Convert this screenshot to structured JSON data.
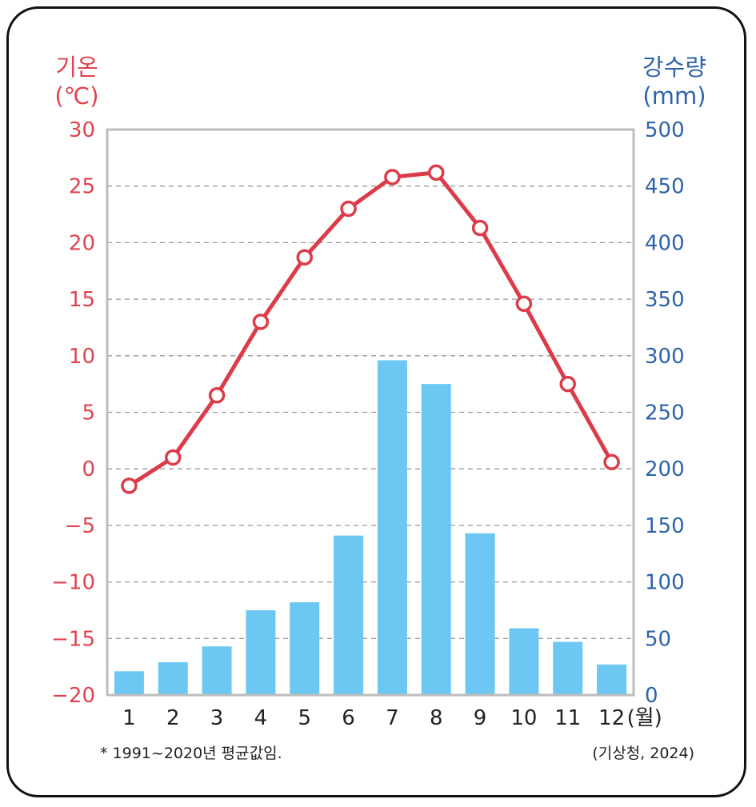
{
  "chart_data": {
    "type": "bar+line",
    "categories": [
      "1",
      "2",
      "3",
      "4",
      "5",
      "6",
      "7",
      "8",
      "9",
      "10",
      "11",
      "12"
    ],
    "x_unit": "(월)",
    "left_axis": {
      "title_lines": [
        "기온",
        "(℃)"
      ],
      "ticks": [
        "30",
        "25",
        "20",
        "15",
        "10",
        "5",
        "0",
        "−5",
        "−10",
        "−15",
        "−20"
      ],
      "ylim": [
        -20,
        30
      ],
      "color": "#e0434f"
    },
    "right_axis": {
      "title_lines": [
        "강수량",
        "(mm)"
      ],
      "ticks": [
        "500",
        "450",
        "400",
        "350",
        "300",
        "250",
        "200",
        "150",
        "100",
        "50",
        "0"
      ],
      "ylim": [
        0,
        500
      ],
      "color": "#2e63a8"
    },
    "series": [
      {
        "kind": "line",
        "axis": "left",
        "values": [
          -1.5,
          1.0,
          6.5,
          13.0,
          18.7,
          23.0,
          25.8,
          26.2,
          21.3,
          14.6,
          7.5,
          0.6
        ],
        "color": "#dc3c4a"
      },
      {
        "kind": "bar",
        "axis": "right",
        "values": [
          21,
          29,
          43,
          75,
          82,
          141,
          296,
          275,
          143,
          59,
          47,
          27
        ],
        "color": "#6cc8f2"
      }
    ],
    "grid": true,
    "footnote": "* 1991~2020년 평균값임.",
    "source": "(기상청, 2024)"
  }
}
